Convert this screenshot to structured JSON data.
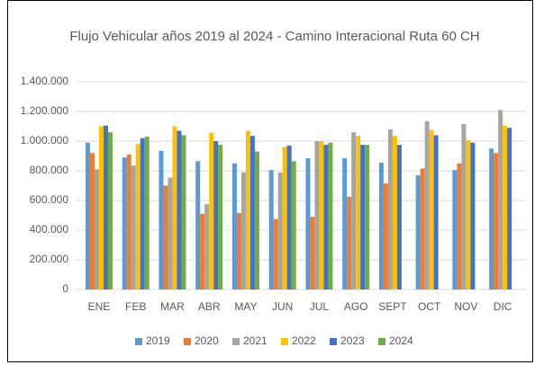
{
  "chart_data": {
    "type": "bar",
    "title": "Flujo Vehicular años 2019 al 2024 - Camino Interacional Ruta 60 CH",
    "categories": [
      "ENE",
      "FEB",
      "MAR",
      "ABR",
      "MAY",
      "JUN",
      "JUL",
      "AGO",
      "SEPT",
      "OCT",
      "NOV",
      "DIC"
    ],
    "series": [
      {
        "name": "2019",
        "color": "#5b9bd5",
        "values": [
          990000,
          890000,
          935000,
          865000,
          850000,
          805000,
          885000,
          885000,
          855000,
          770000,
          805000,
          950000
        ]
      },
      {
        "name": "2020",
        "color": "#ed7d31",
        "values": [
          920000,
          910000,
          700000,
          510000,
          515000,
          475000,
          490000,
          625000,
          715000,
          815000,
          850000,
          920000
        ]
      },
      {
        "name": "2021",
        "color": "#a5a5a5",
        "values": [
          810000,
          835000,
          755000,
          575000,
          790000,
          790000,
          1000000,
          1060000,
          1080000,
          1135000,
          1115000,
          1210000
        ]
      },
      {
        "name": "2022",
        "color": "#ffc000",
        "values": [
          1100000,
          980000,
          1100000,
          1055000,
          1070000,
          960000,
          1000000,
          1035000,
          1035000,
          1075000,
          1005000,
          1105000
        ]
      },
      {
        "name": "2023",
        "color": "#4472c4",
        "values": [
          1105000,
          1020000,
          1070000,
          1000000,
          1035000,
          970000,
          975000,
          975000,
          975000,
          1040000,
          990000,
          1090000
        ]
      },
      {
        "name": "2024",
        "color": "#70ad47",
        "values": [
          1060000,
          1030000,
          1040000,
          975000,
          930000,
          865000,
          990000,
          975000,
          null,
          null,
          null,
          null
        ]
      }
    ],
    "ylim": [
      0,
      1400000
    ],
    "yticks": [
      0,
      {
        "value": 200000,
        "label": "200.000"
      },
      {
        "value": 400000,
        "label": "400.000"
      },
      {
        "value": 600000,
        "label": "600.000"
      },
      {
        "value": 800000,
        "label": "800.000"
      },
      {
        "value": 1000000,
        "label": "1.000.000"
      },
      {
        "value": 1200000,
        "label": "1.200.000"
      },
      {
        "value": 1400000,
        "label": "1.400.000"
      }
    ],
    "grid": true,
    "legend": "bottom"
  }
}
